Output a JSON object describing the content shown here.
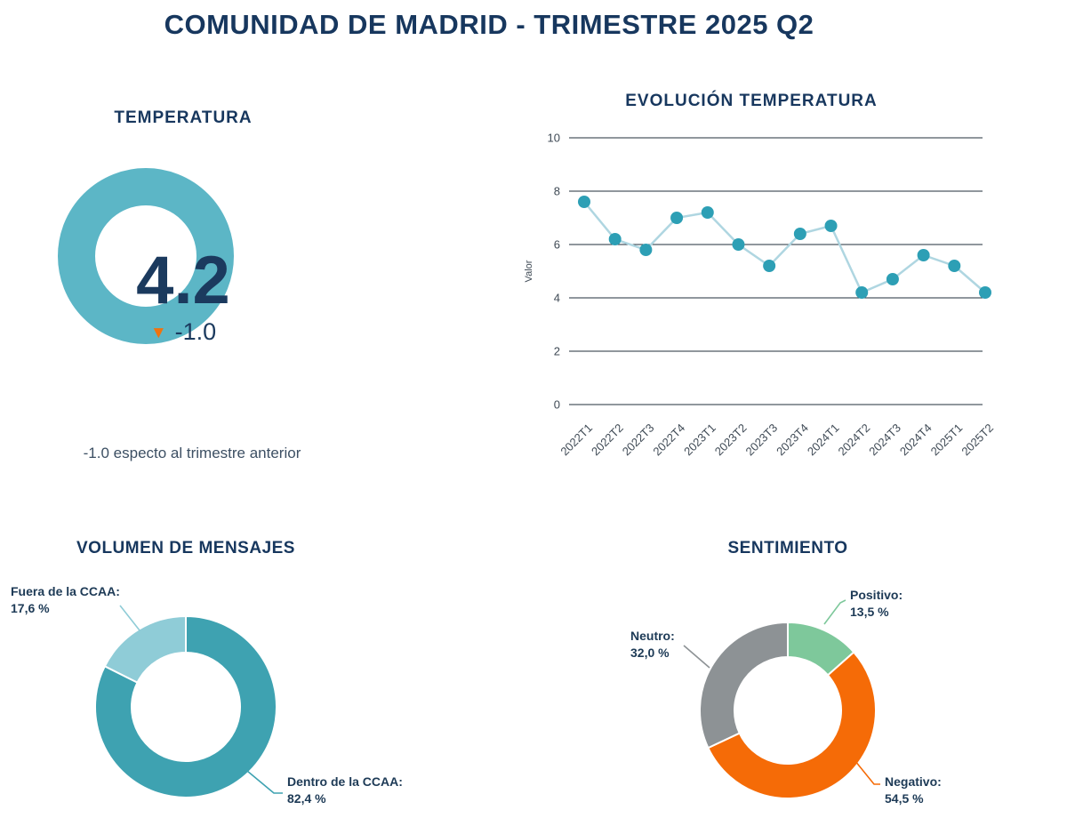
{
  "page": {
    "title": "COMUNIDAD DE MADRID - TRIMESTRE 2025 Q2"
  },
  "colors": {
    "navy": "#17375e",
    "gauge_ring": "#5cb6c6",
    "delta_orange": "#f0730f",
    "grid_line": "#222f3b",
    "series_line": "#afd6e1",
    "series_marker": "#2d9fb5"
  },
  "gauge": {
    "title": "TEMPERATURA",
    "value": "4.2",
    "delta": "-1.0",
    "delta_direction": "down",
    "caption": "-1.0 especto al trimestre anterior"
  },
  "chart_data": [
    {
      "id": "evolucion-temperatura",
      "type": "line",
      "title": "EVOLUCIÓN TEMPERATURA",
      "xlabel": "",
      "ylabel": "Valor",
      "categories": [
        "2022T1",
        "2022T2",
        "2022T3",
        "2022T4",
        "2023T1",
        "2023T2",
        "2023T3",
        "2023T4",
        "2024T1",
        "2024T2",
        "2024T3",
        "2024T4",
        "2025T1",
        "2025T2"
      ],
      "values": [
        7.6,
        6.2,
        5.8,
        7.0,
        7.2,
        6.0,
        5.2,
        6.4,
        6.7,
        4.2,
        4.7,
        5.6,
        5.2,
        4.2
      ],
      "ylim": [
        0,
        10
      ],
      "yticks": [
        0,
        2,
        4,
        6,
        8,
        10
      ],
      "grid": true,
      "legend": false,
      "line_color": "#afd6e1",
      "marker_color": "#2d9fb5"
    },
    {
      "id": "volumen-de-mensajes",
      "type": "pie",
      "title": "VOLUMEN DE MENSAJES",
      "donut": true,
      "start_angle_deg": 0,
      "slices": [
        {
          "label": "Dentro de la CCAA:",
          "pct_label": "82,4 %",
          "value": 82.4,
          "color": "#3ea2b1"
        },
        {
          "label": "Fuera de la CCAA:",
          "pct_label": "17,6 %",
          "value": 17.6,
          "color": "#8fccd7"
        }
      ]
    },
    {
      "id": "sentimiento",
      "type": "pie",
      "title": "SENTIMIENTO",
      "donut": true,
      "start_angle_deg": 0,
      "slices": [
        {
          "label": "Positivo:",
          "pct_label": "13,5 %",
          "value": 13.5,
          "color": "#7ec89b"
        },
        {
          "label": "Negativo:",
          "pct_label": "54,5 %",
          "value": 54.5,
          "color": "#f56b07"
        },
        {
          "label": "Neutro:",
          "pct_label": "32,0 %",
          "value": 32.0,
          "color": "#8d9295"
        }
      ]
    }
  ]
}
